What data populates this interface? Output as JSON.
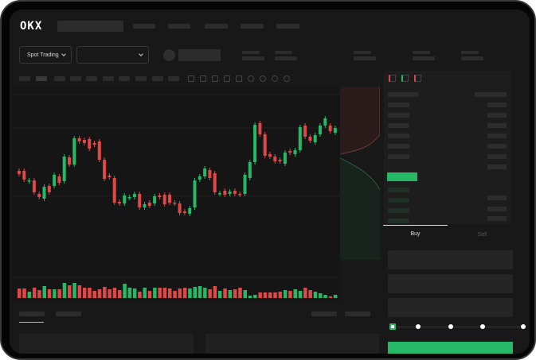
{
  "brand": {
    "logo_text": "OKX"
  },
  "market_selector": {
    "label": "Spot Trading"
  },
  "trade_tabs": {
    "buy": "Buy",
    "sell": "Sell"
  },
  "colors": {
    "up": "#26b866",
    "down": "#e04848",
    "background": "#181818",
    "panel": "#1d1d1d"
  },
  "leverage_slider": {
    "steps": 5,
    "value_percent": 0
  },
  "chart": {
    "type": "candlestick",
    "candles": [
      [
        127,
        123
      ],
      [
        127,
        116
      ],
      [
        114,
        115
      ],
      [
        115,
        100
      ],
      [
        98,
        94
      ],
      [
        92,
        107
      ],
      [
        108,
        100
      ],
      [
        108,
        122
      ],
      [
        120,
        112
      ],
      [
        114,
        145
      ],
      [
        144,
        135
      ],
      [
        135,
        168
      ],
      [
        168,
        164
      ],
      [
        166,
        162
      ],
      [
        167,
        155
      ],
      [
        162,
        160
      ],
      [
        164,
        141
      ],
      [
        141,
        117
      ],
      [
        121,
        119
      ],
      [
        118,
        87
      ],
      [
        88,
        86
      ],
      [
        86,
        96
      ],
      [
        93,
        94
      ],
      [
        94,
        98
      ],
      [
        98,
        81
      ],
      [
        81,
        85
      ],
      [
        87,
        83
      ],
      [
        86,
        95
      ],
      [
        96,
        94
      ],
      [
        97,
        85
      ],
      [
        97,
        87
      ],
      [
        87,
        86
      ],
      [
        86,
        74
      ],
      [
        76,
        74
      ],
      [
        73,
        80
      ],
      [
        81,
        115
      ],
      [
        116,
        120
      ],
      [
        120,
        130
      ],
      [
        128,
        118
      ],
      [
        124,
        100
      ],
      [
        98,
        99
      ],
      [
        102,
        97
      ],
      [
        98,
        101
      ],
      [
        102,
        98
      ],
      [
        98,
        97
      ],
      [
        98,
        122
      ],
      [
        118,
        138
      ],
      [
        138,
        185
      ],
      [
        187,
        173
      ],
      [
        173,
        146
      ],
      [
        148,
        145
      ],
      [
        145,
        139
      ],
      [
        141,
        139
      ],
      [
        136,
        150
      ],
      [
        152,
        150
      ],
      [
        148,
        153
      ],
      [
        153,
        182
      ],
      [
        184,
        170
      ],
      [
        170,
        165
      ],
      [
        163,
        172
      ],
      [
        173,
        184
      ],
      [
        184,
        193
      ],
      [
        184,
        177
      ],
      [
        175,
        181
      ]
    ],
    "volumes": [
      12,
      12,
      8,
      13,
      10,
      15,
      11,
      11,
      11,
      19,
      16,
      19,
      16,
      13,
      13,
      9,
      11,
      14,
      11,
      13,
      10,
      18,
      13,
      12,
      8,
      13,
      9,
      13,
      13,
      13,
      12,
      9,
      12,
      13,
      12,
      14,
      15,
      13,
      11,
      15,
      9,
      12,
      10,
      11,
      13,
      10,
      3,
      4,
      7,
      7,
      7,
      7,
      8,
      10,
      9,
      11,
      9,
      13,
      10,
      8,
      6,
      4,
      2,
      4
    ]
  }
}
